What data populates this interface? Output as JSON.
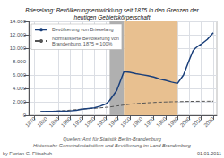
{
  "chart_data": {
    "type": "line",
    "title": "Brieselang: Bevölkerungsentwicklung seit 1875 in den Grenzen der\nheutigen Gebietskörperschaft",
    "series": [
      {
        "name": "Bevölkerung von Brieselang",
        "color": "#1a3f7a",
        "line_style": "solid",
        "x": [
          1875,
          1880,
          1885,
          1890,
          1895,
          1900,
          1905,
          1910,
          1915,
          1920,
          1925,
          1930,
          1933,
          1939,
          1945,
          1950,
          1955,
          1960,
          1965,
          1970,
          1975,
          1980,
          1985,
          1990,
          1995,
          2000,
          2003,
          2005,
          2008,
          2010,
          2015,
          2020
        ],
        "values": [
          550,
          560,
          570,
          590,
          610,
          650,
          720,
          900,
          1000,
          1100,
          1350,
          1700,
          2200,
          3700,
          6500,
          6400,
          6200,
          6050,
          5900,
          5700,
          5400,
          5200,
          4950,
          4750,
          6000,
          8300,
          9600,
          10000,
          10400,
          10600,
          11300,
          12300
        ]
      },
      {
        "name": "Normalisierte Bevölkerung von\nBrandenburg, 1875 = 100%",
        "color": "#555555",
        "line_style": "dashed",
        "x": [
          1875,
          1880,
          1885,
          1890,
          1895,
          1900,
          1905,
          1910,
          1915,
          1920,
          1925,
          1930,
          1933,
          1939,
          1945,
          1950,
          1955,
          1960,
          1965,
          1970,
          1975,
          1980,
          1985,
          1990,
          1995,
          2000,
          2005,
          2010,
          2015,
          2020
        ],
        "values": [
          550,
          570,
          600,
          640,
          690,
          760,
          840,
          930,
          980,
          1020,
          1100,
          1180,
          1230,
          1380,
          1520,
          1640,
          1730,
          1790,
          1850,
          1900,
          1940,
          1970,
          2000,
          2020,
          2040,
          2060,
          2070,
          2080,
          2085,
          2090
        ]
      }
    ],
    "shaded_regions": [
      {
        "start": 1933,
        "end": 1945,
        "color": "#b0b0b0"
      },
      {
        "start": 1945,
        "end": 1990,
        "color": "#e8c090"
      }
    ],
    "xlim": [
      1865,
      2023
    ],
    "xticks": [
      1870,
      1880,
      1890,
      1900,
      1910,
      1920,
      1930,
      1940,
      1950,
      1960,
      1970,
      1980,
      1990,
      2000,
      2010,
      2020
    ],
    "ylim": [
      0,
      14000
    ],
    "yticks": [
      0,
      {
        "value": 2000,
        "label": "2.000"
      },
      {
        "value": 4000,
        "label": "4.000"
      },
      {
        "value": 6000,
        "label": "6.000"
      },
      {
        "value": 8000,
        "label": "8.000"
      },
      {
        "value": 10000,
        "label": "10.000"
      },
      {
        "value": 12000,
        "label": "12.000"
      },
      {
        "value": 14000,
        "label": "14.000"
      }
    ],
    "grid": true,
    "legend": "upper left",
    "annotations": [
      "Quellen: Amt für Statistik Berlin-Brandenburg\nHistorische Gemeindestatistiken und Bevölkerung im Land Brandenburg",
      "by Florian G. Flitschuh",
      "01.01.2011"
    ]
  }
}
